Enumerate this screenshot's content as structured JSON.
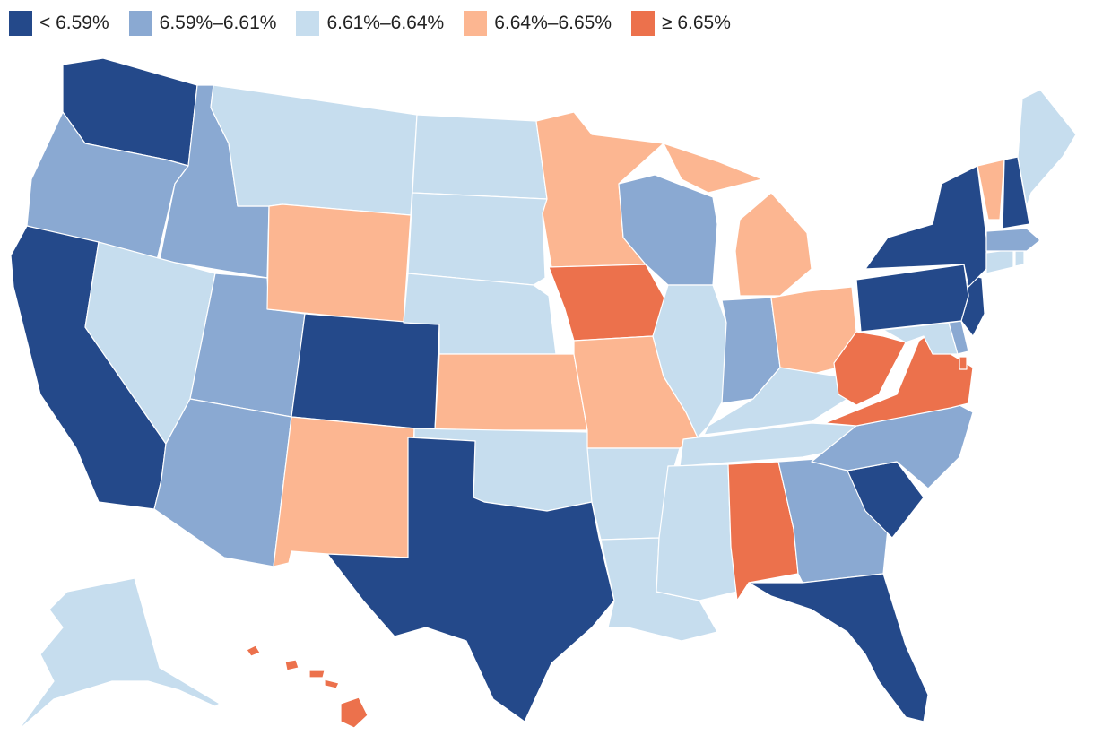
{
  "legend": {
    "items": [
      {
        "label": "< 6.59%",
        "bin": 0
      },
      {
        "label": "6.59%–6.61%",
        "bin": 1
      },
      {
        "label": "6.61%–6.64%",
        "bin": 2
      },
      {
        "label": "6.64%–6.65%",
        "bin": 3
      },
      {
        "label": "≥ 6.65%",
        "bin": 4
      }
    ]
  },
  "colors": {
    "bins": [
      "#24498a",
      "#8aa9d2",
      "#c6ddee",
      "#fcb691",
      "#ec714c"
    ],
    "border": "#ffffff"
  },
  "states": [
    {
      "id": "WA",
      "bin": 0
    },
    {
      "id": "OR",
      "bin": 1
    },
    {
      "id": "CA",
      "bin": 0
    },
    {
      "id": "ID",
      "bin": 1
    },
    {
      "id": "NV",
      "bin": 2
    },
    {
      "id": "UT",
      "bin": 1
    },
    {
      "id": "AZ",
      "bin": 1
    },
    {
      "id": "MT",
      "bin": 2
    },
    {
      "id": "WY",
      "bin": 3
    },
    {
      "id": "CO",
      "bin": 0
    },
    {
      "id": "NM",
      "bin": 3
    },
    {
      "id": "ND",
      "bin": 2
    },
    {
      "id": "SD",
      "bin": 2
    },
    {
      "id": "NE",
      "bin": 2
    },
    {
      "id": "KS",
      "bin": 3
    },
    {
      "id": "OK",
      "bin": 2
    },
    {
      "id": "TX",
      "bin": 0
    },
    {
      "id": "MN",
      "bin": 3
    },
    {
      "id": "IA",
      "bin": 4
    },
    {
      "id": "MO",
      "bin": 3
    },
    {
      "id": "AR",
      "bin": 2
    },
    {
      "id": "LA",
      "bin": 2
    },
    {
      "id": "WI",
      "bin": 1
    },
    {
      "id": "IL",
      "bin": 2
    },
    {
      "id": "MI",
      "bin": 3
    },
    {
      "id": "IN",
      "bin": 1
    },
    {
      "id": "OH",
      "bin": 3
    },
    {
      "id": "KY",
      "bin": 2
    },
    {
      "id": "TN",
      "bin": 2
    },
    {
      "id": "MS",
      "bin": 2
    },
    {
      "id": "AL",
      "bin": 4
    },
    {
      "id": "GA",
      "bin": 1
    },
    {
      "id": "FL",
      "bin": 0
    },
    {
      "id": "SC",
      "bin": 0
    },
    {
      "id": "NC",
      "bin": 1
    },
    {
      "id": "VA",
      "bin": 4
    },
    {
      "id": "WV",
      "bin": 4
    },
    {
      "id": "MD",
      "bin": 2
    },
    {
      "id": "DE",
      "bin": 1
    },
    {
      "id": "NJ",
      "bin": 0
    },
    {
      "id": "PA",
      "bin": 0
    },
    {
      "id": "NY",
      "bin": 0
    },
    {
      "id": "CT",
      "bin": 2
    },
    {
      "id": "RI",
      "bin": 2
    },
    {
      "id": "MA",
      "bin": 1
    },
    {
      "id": "VT",
      "bin": 3
    },
    {
      "id": "NH",
      "bin": 0
    },
    {
      "id": "ME",
      "bin": 2
    },
    {
      "id": "AK",
      "bin": 2
    },
    {
      "id": "HI",
      "bin": 4
    },
    {
      "id": "DC",
      "bin": 4
    }
  ]
}
